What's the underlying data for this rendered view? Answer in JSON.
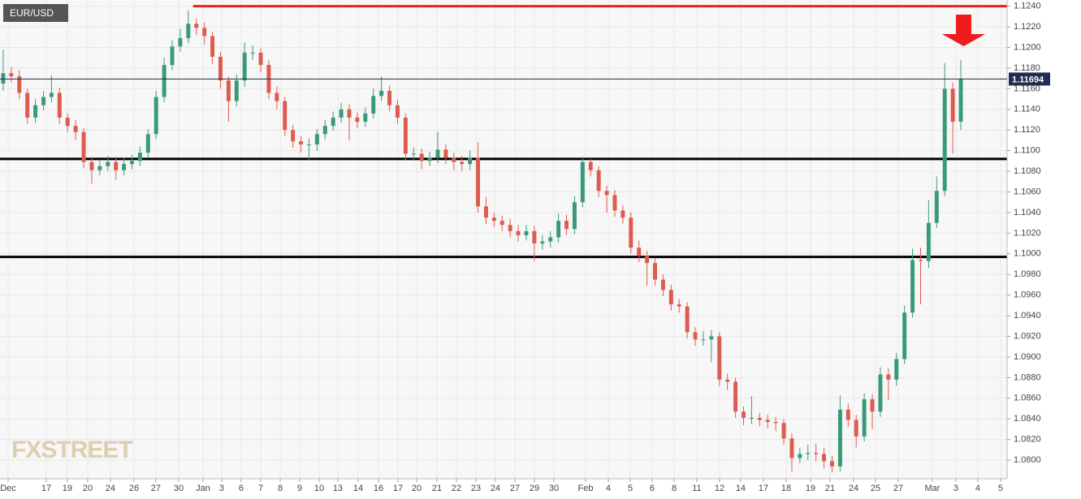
{
  "chart_data": {
    "type": "candlestick",
    "title": "EUR/USD",
    "watermark": "FXSTREET",
    "up_color": "#3a9a78",
    "down_color": "#de5b4f",
    "grid": true,
    "xlim": [
      -0.4,
      124.75
    ],
    "xticks": [
      {
        "value": 0.61,
        "label": "Dec"
      },
      {
        "value": 5.35,
        "label": "17"
      },
      {
        "value": 7.97,
        "label": "19"
      },
      {
        "value": 10.5,
        "label": "20"
      },
      {
        "value": 13.32,
        "label": "24"
      },
      {
        "value": 16.25,
        "label": "26"
      },
      {
        "value": 18.97,
        "label": "27"
      },
      {
        "value": 21.8,
        "label": "30"
      },
      {
        "value": 24.83,
        "label": "Jan"
      },
      {
        "value": 27.15,
        "label": "3"
      },
      {
        "value": 29.57,
        "label": "6"
      },
      {
        "value": 31.99,
        "label": "7"
      },
      {
        "value": 34.42,
        "label": "8"
      },
      {
        "value": 36.84,
        "label": "9"
      },
      {
        "value": 39.26,
        "label": "10"
      },
      {
        "value": 41.58,
        "label": "13"
      },
      {
        "value": 44.11,
        "label": "14"
      },
      {
        "value": 46.63,
        "label": "16"
      },
      {
        "value": 49.05,
        "label": "17"
      },
      {
        "value": 51.37,
        "label": "20"
      },
      {
        "value": 53.9,
        "label": "21"
      },
      {
        "value": 56.32,
        "label": "22"
      },
      {
        "value": 58.74,
        "label": "23"
      },
      {
        "value": 61.16,
        "label": "24"
      },
      {
        "value": 63.59,
        "label": "27"
      },
      {
        "value": 66.01,
        "label": "29"
      },
      {
        "value": 68.43,
        "label": "30"
      },
      {
        "value": 72.37,
        "label": "Feb"
      },
      {
        "value": 75.19,
        "label": "4"
      },
      {
        "value": 77.92,
        "label": "5"
      },
      {
        "value": 80.64,
        "label": "6"
      },
      {
        "value": 83.37,
        "label": "8"
      },
      {
        "value": 86.19,
        "label": "11"
      },
      {
        "value": 89.02,
        "label": "12"
      },
      {
        "value": 91.64,
        "label": "14"
      },
      {
        "value": 94.47,
        "label": "17"
      },
      {
        "value": 97.3,
        "label": "18"
      },
      {
        "value": 100.32,
        "label": "19"
      },
      {
        "value": 102.75,
        "label": "21"
      },
      {
        "value": 105.67,
        "label": "24"
      },
      {
        "value": 108.4,
        "label": "25"
      },
      {
        "value": 111.22,
        "label": "27"
      },
      {
        "value": 115.46,
        "label": "Mar"
      },
      {
        "value": 118.39,
        "label": "3"
      },
      {
        "value": 121.11,
        "label": "4"
      },
      {
        "value": 123.94,
        "label": "5"
      }
    ],
    "ylim": [
      1.0782,
      1.1246
    ],
    "yticks": [
      {
        "value": 1.124,
        "label": "1.1240"
      },
      {
        "value": 1.122,
        "label": "1.1220"
      },
      {
        "value": 1.12,
        "label": "1.1200"
      },
      {
        "value": 1.118,
        "label": "1.1180"
      },
      {
        "value": 1.116,
        "label": "1.1160"
      },
      {
        "value": 1.114,
        "label": "1.1140"
      },
      {
        "value": 1.112,
        "label": "1.1120"
      },
      {
        "value": 1.11,
        "label": "1.1100"
      },
      {
        "value": 1.108,
        "label": "1.1080"
      },
      {
        "value": 1.106,
        "label": "1.1060"
      },
      {
        "value": 1.104,
        "label": "1.1040"
      },
      {
        "value": 1.102,
        "label": "1.1020"
      },
      {
        "value": 1.1,
        "label": "1.1000"
      },
      {
        "value": 1.098,
        "label": "1.0980"
      },
      {
        "value": 1.096,
        "label": "1.0960"
      },
      {
        "value": 1.094,
        "label": "1.0940"
      },
      {
        "value": 1.092,
        "label": "1.0920"
      },
      {
        "value": 1.09,
        "label": "1.0900"
      },
      {
        "value": 1.088,
        "label": "1.0880"
      },
      {
        "value": 1.086,
        "label": "1.0860"
      },
      {
        "value": 1.084,
        "label": "1.0840"
      },
      {
        "value": 1.082,
        "label": "1.0820"
      },
      {
        "value": 1.08,
        "label": "1.0800"
      }
    ],
    "open": [
      1.1165,
      1.1175,
      1.1172,
      1.1156,
      1.1132,
      1.1144,
      1.1152,
      1.1156,
      1.1132,
      1.1124,
      1.1118,
      1.1089,
      1.1081,
      1.1085,
      1.1089,
      1.1081,
      1.1087,
      1.109,
      1.1098,
      1.1116,
      1.1152,
      1.1183,
      1.1201,
      1.1209,
      1.1223,
      1.1219,
      1.1211,
      1.1191,
      1.1168,
      1.1148,
      1.1168,
      1.1195,
      1.1195,
      1.1183,
      1.1156,
      1.1148,
      1.112,
      1.1109,
      1.1106,
      1.1106,
      1.1116,
      1.1124,
      1.1132,
      1.114,
      1.1132,
      1.1128,
      1.1136,
      1.1153,
      1.1158,
      1.1144,
      1.1132,
      1.1097,
      1.1097,
      1.109,
      1.1093,
      1.1101,
      1.1093,
      1.1089,
      1.1087,
      1.1093,
      1.1046,
      1.1035,
      1.1032,
      1.1028,
      1.1022,
      1.1018,
      1.1022,
      1.101,
      1.1012,
      1.1016,
      1.1032,
      1.1024,
      1.105,
      1.1089,
      1.1081,
      1.1061,
      1.1057,
      1.1042,
      1.1035,
      1.1006,
      1.0998,
      1.0991,
      1.0975,
      1.0965,
      1.0951,
      1.0949,
      1.0924,
      1.0917,
      1.0917,
      1.092,
      1.0878,
      1.0876,
      1.0847,
      1.0841,
      1.0841,
      1.0839,
      1.0837,
      1.0836,
      1.0821,
      1.0802,
      1.0806,
      1.0807,
      1.0806,
      1.0799,
      1.0794,
      1.0849,
      1.0839,
      1.0823,
      1.0859,
      1.0847,
      1.0883,
      1.0878,
      1.0898,
      1.0943,
      1.0994,
      1.0993,
      1.103,
      1.1061,
      1.116,
      1.1128
    ],
    "high": [
      1.1198,
      1.1181,
      1.1178,
      1.116,
      1.115,
      1.1158,
      1.1173,
      1.1161,
      1.1136,
      1.113,
      1.1122,
      1.1094,
      1.1091,
      1.1095,
      1.1094,
      1.1093,
      1.1096,
      1.1104,
      1.1121,
      1.1158,
      1.119,
      1.1207,
      1.1218,
      1.1236,
      1.1228,
      1.1224,
      1.1215,
      1.1196,
      1.1172,
      1.1174,
      1.1205,
      1.1202,
      1.1199,
      1.1188,
      1.1162,
      1.1152,
      1.1125,
      1.1114,
      1.1112,
      1.1121,
      1.113,
      1.1138,
      1.1146,
      1.1145,
      1.1137,
      1.1142,
      1.116,
      1.1172,
      1.1163,
      1.1149,
      1.1136,
      1.1103,
      1.1102,
      1.1099,
      1.1118,
      1.1106,
      1.1098,
      1.1095,
      1.11,
      1.1108,
      1.1055,
      1.104,
      1.1037,
      1.1034,
      1.1028,
      1.1028,
      1.1027,
      1.1018,
      1.1022,
      1.1039,
      1.1038,
      1.1056,
      1.1094,
      1.1092,
      1.1085,
      1.1066,
      1.1062,
      1.1047,
      1.104,
      1.1013,
      1.1003,
      1.0996,
      1.098,
      1.097,
      1.0956,
      1.0953,
      1.0929,
      1.0925,
      1.0926,
      1.0924,
      1.0884,
      1.088,
      1.0852,
      1.0862,
      1.0846,
      1.0844,
      1.0842,
      1.084,
      1.0826,
      1.0812,
      1.0815,
      1.0816,
      1.0812,
      1.0804,
      1.0863,
      1.0855,
      1.0844,
      1.0865,
      1.0864,
      1.089,
      1.0889,
      1.0904,
      1.095,
      1.1005,
      1.1006,
      1.1052,
      1.1075,
      1.1185,
      1.1166,
      1.1188
    ],
    "low": [
      1.1158,
      1.1166,
      1.115,
      1.1126,
      1.1127,
      1.1139,
      1.1147,
      1.1126,
      1.1118,
      1.111,
      1.1083,
      1.1068,
      1.1076,
      1.108,
      1.1072,
      1.1076,
      1.1082,
      1.1085,
      1.1093,
      1.1111,
      1.1147,
      1.1178,
      1.1196,
      1.1204,
      1.1212,
      1.1203,
      1.1184,
      1.116,
      1.1128,
      1.1143,
      1.1162,
      1.1188,
      1.1176,
      1.115,
      1.114,
      1.1114,
      1.1103,
      1.1098,
      1.109,
      1.11,
      1.1111,
      1.1119,
      1.1127,
      1.111,
      1.1122,
      1.1123,
      1.1131,
      1.1148,
      1.1138,
      1.1126,
      1.1091,
      1.109,
      1.1082,
      1.1085,
      1.1088,
      1.1087,
      1.1081,
      1.108,
      1.1081,
      1.104,
      1.1029,
      1.1026,
      1.1022,
      1.1016,
      1.1012,
      1.1013,
      1.0993,
      1.1004,
      1.1006,
      1.1011,
      1.1018,
      1.1019,
      1.1045,
      1.1075,
      1.1055,
      1.104,
      1.1036,
      1.1029,
      1.1,
      1.0992,
      1.0969,
      1.0969,
      1.0959,
      1.0945,
      1.0943,
      1.0918,
      1.0911,
      1.0911,
      1.0895,
      1.0872,
      1.0868,
      1.0841,
      1.0834,
      1.0835,
      1.0833,
      1.0831,
      1.0828,
      1.0815,
      1.0789,
      1.0797,
      1.08,
      1.0799,
      1.0792,
      1.0788,
      1.0789,
      1.0832,
      1.0812,
      1.0818,
      1.083,
      1.0842,
      1.0858,
      1.0872,
      1.0893,
      1.0938,
      1.0951,
      1.0986,
      1.1025,
      1.1056,
      1.1097,
      1.112
    ],
    "close": [
      1.1175,
      1.1172,
      1.1156,
      1.1132,
      1.1144,
      1.1152,
      1.1156,
      1.1132,
      1.1124,
      1.1118,
      1.1089,
      1.1081,
      1.1085,
      1.1089,
      1.1081,
      1.1087,
      1.109,
      1.1098,
      1.1116,
      1.1152,
      1.1183,
      1.1201,
      1.1209,
      1.1223,
      1.1219,
      1.1211,
      1.1191,
      1.1168,
      1.1148,
      1.1168,
      1.1195,
      1.1195,
      1.1183,
      1.1156,
      1.1148,
      1.112,
      1.1109,
      1.1106,
      1.1106,
      1.1116,
      1.1124,
      1.1132,
      1.114,
      1.1132,
      1.1128,
      1.1136,
      1.1153,
      1.1158,
      1.1144,
      1.1132,
      1.1097,
      1.1097,
      1.109,
      1.1093,
      1.1101,
      1.1093,
      1.1089,
      1.1087,
      1.1093,
      1.1046,
      1.1035,
      1.1032,
      1.1028,
      1.1022,
      1.1018,
      1.1022,
      1.101,
      1.1012,
      1.1016,
      1.1032,
      1.1024,
      1.105,
      1.1089,
      1.1081,
      1.1061,
      1.1057,
      1.1042,
      1.1035,
      1.1006,
      1.0998,
      1.0991,
      1.0975,
      1.0965,
      1.0951,
      1.0949,
      1.0924,
      1.0917,
      1.0917,
      1.092,
      1.0878,
      1.0876,
      1.0847,
      1.0841,
      1.0841,
      1.0839,
      1.0837,
      1.0836,
      1.0821,
      1.0802,
      1.0806,
      1.0807,
      1.0806,
      1.0799,
      1.0794,
      1.0849,
      1.0839,
      1.0823,
      1.0859,
      1.0847,
      1.0883,
      1.0878,
      1.0898,
      1.0943,
      1.0994,
      1.0993,
      1.103,
      1.1061,
      1.116,
      1.1128,
      1.1169
    ],
    "level_lines": [
      {
        "value": 1.124,
        "color": "#e8231c",
        "x_start": 23.6
      },
      {
        "value": 1.1092,
        "color": "#000000"
      },
      {
        "value": 1.0997,
        "color": "#000000"
      }
    ],
    "last_price": {
      "value": 1.11694,
      "color": "#1f2d50"
    }
  }
}
